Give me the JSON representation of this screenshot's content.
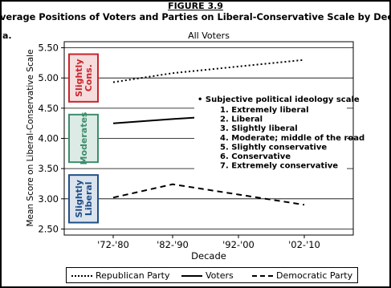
{
  "figure": {
    "number": "FIGURE 3.9",
    "title": "verage Positions of Voters and Parties on Liberal-Conservative Scale by Decade",
    "panel": "a.",
    "chart_title": "All Voters"
  },
  "chart_data": {
    "type": "line",
    "title": "All Voters",
    "xlabel": "Decade",
    "ylabel": "Mean Score on Liberal-Conservative Scale",
    "categories": [
      "'72-'80",
      "'82-'90",
      "'92-'00",
      "'02-'10"
    ],
    "ylim": [
      2.4,
      5.6
    ],
    "yticks": [
      "2.50",
      "3.00",
      "3.50",
      "4.00",
      "4.50",
      "5.00",
      "5.50"
    ],
    "grid": true,
    "series": [
      {
        "name": "Republican Party",
        "style": "dotted",
        "values": [
          4.93,
          5.08,
          5.19,
          5.3
        ]
      },
      {
        "name": "Voters",
        "style": "solid",
        "values": [
          4.25,
          4.32,
          4.39,
          4.36
        ]
      },
      {
        "name": "Democratic Party",
        "style": "dashed",
        "values": [
          3.02,
          3.24,
          3.07,
          2.9
        ]
      }
    ],
    "bands": [
      {
        "label": "Slightly Cons.",
        "range": [
          4.5,
          5.5
        ],
        "color": "#c8252d",
        "fill": "#f6dcdc"
      },
      {
        "label": "Moderates",
        "range": [
          3.5,
          4.5
        ],
        "color": "#3c8d6b",
        "fill": "#dcebe5"
      },
      {
        "label": "Slightly Liberal",
        "range": [
          2.5,
          3.5
        ],
        "color": "#1f4f86",
        "fill": "#dbe3ee"
      }
    ],
    "annotation": {
      "heading": "Subjective political ideology scale",
      "items": [
        "1.   Extremely liberal",
        "2.   Liberal",
        "3.   Slightly liberal",
        "4.   Moderate; middle of the road",
        "5.   Slightly conservative",
        "6.   Conservative",
        "7.   Extremely conservative"
      ]
    },
    "legend_position": "bottom"
  },
  "legend": [
    {
      "label": "Republican Party",
      "style": "dotted"
    },
    {
      "label": "Voters",
      "style": "solid"
    },
    {
      "label": "Democratic Party",
      "style": "dashed"
    }
  ]
}
